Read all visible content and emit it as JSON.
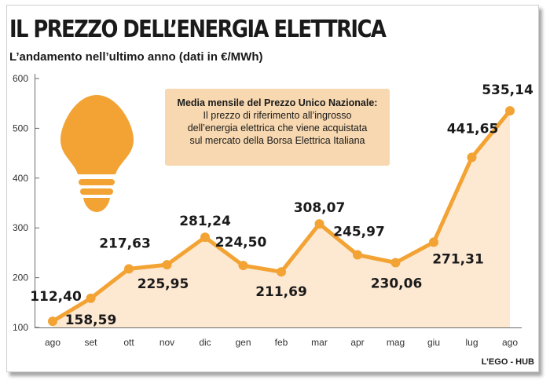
{
  "header": {
    "title": "IL PREZZO DELL’ENERGIA ELETTRICA",
    "subtitle": "L’andamento nell’ultimo anno (dati in €/MWh)"
  },
  "note": {
    "title": "Media mensile del Prezzo Unico Nazionale:",
    "lines": [
      "Il prezzo di riferimento all’ingrosso",
      "dell’energia elettrica che viene acquistata",
      "sul mercato della Borsa Elettrica Italiana"
    ]
  },
  "credit": "L’EGO - HUB",
  "icons": {
    "decoration": "lightbulb-icon"
  },
  "colors": {
    "line": "#f2a333",
    "fill": "#fde8d2",
    "bulb": "#f2a333",
    "note_bg": "#f7d8b0"
  },
  "chart_data": {
    "type": "area",
    "categories": [
      "ago",
      "set",
      "ott",
      "nov",
      "dic",
      "gen",
      "feb",
      "mar",
      "apr",
      "mag",
      "giu",
      "lug",
      "ago"
    ],
    "values": [
      112.4,
      158.59,
      217.63,
      225.95,
      281.24,
      224.5,
      211.69,
      308.07,
      245.97,
      230.06,
      271.31,
      441.65,
      535.14
    ],
    "value_labels": [
      "112,40",
      "158,59",
      "217,63",
      "225,95",
      "281,24",
      "224,50",
      "211,69",
      "308,07",
      "245,97",
      "230,06",
      "271,31",
      "441,65",
      "535,14"
    ],
    "yticks": [
      100,
      200,
      300,
      400,
      500,
      600
    ],
    "ylim": [
      100,
      600
    ],
    "xlabel": "",
    "ylabel": "",
    "grid": false,
    "title": "IL PREZZO DELL’ENERGIA ELETTRICA",
    "subtitle": "L’andamento nell’ultimo anno (dati in €/MWh)"
  }
}
